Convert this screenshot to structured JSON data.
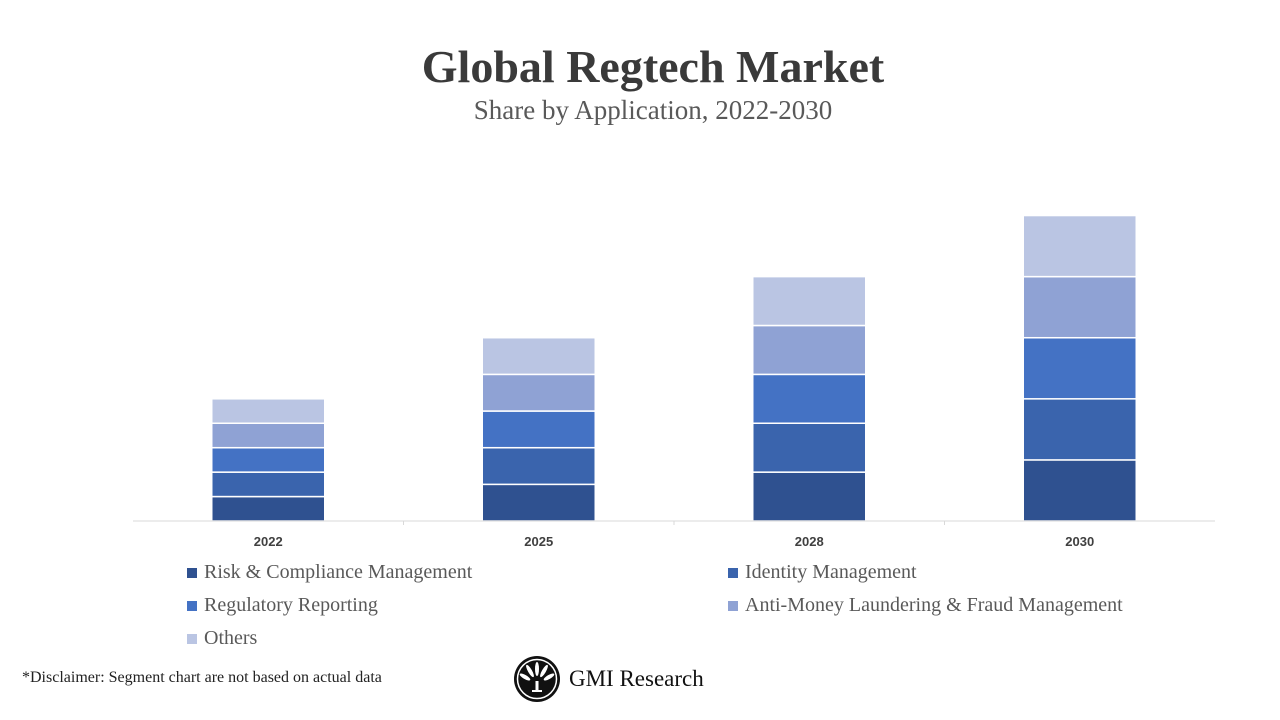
{
  "chart_data": {
    "type": "bar",
    "stacked": true,
    "title": "Global Regtech Market",
    "subtitle": "Share by Application, 2022-2030",
    "categories": [
      "2022",
      "2025",
      "2028",
      "2030"
    ],
    "series": [
      {
        "name": "Risk & Compliance Management",
        "color": "#2F5190",
        "values": [
          1,
          1.5,
          2,
          2.5
        ]
      },
      {
        "name": "Identity Management",
        "color": "#3A64AD",
        "values": [
          1,
          1.5,
          2,
          2.5
        ]
      },
      {
        "name": "Regulatory Reporting",
        "color": "#4472C4",
        "values": [
          1,
          1.5,
          2,
          2.5
        ]
      },
      {
        "name": "Anti-Money Laundering & Fraud Management",
        "color": "#8FA2D4",
        "values": [
          1,
          1.5,
          2,
          2.5
        ]
      },
      {
        "name": "Others",
        "color": "#BAC5E3",
        "values": [
          1,
          1.5,
          2,
          2.5
        ]
      }
    ],
    "ylim": [
      0,
      16
    ],
    "y_axis_shown": false,
    "grid": false,
    "legend_position": "bottom"
  },
  "footer": {
    "disclaimer": "*Disclaimer:   Segment chart are not based on actual data",
    "logo_text": "GMI Research"
  }
}
